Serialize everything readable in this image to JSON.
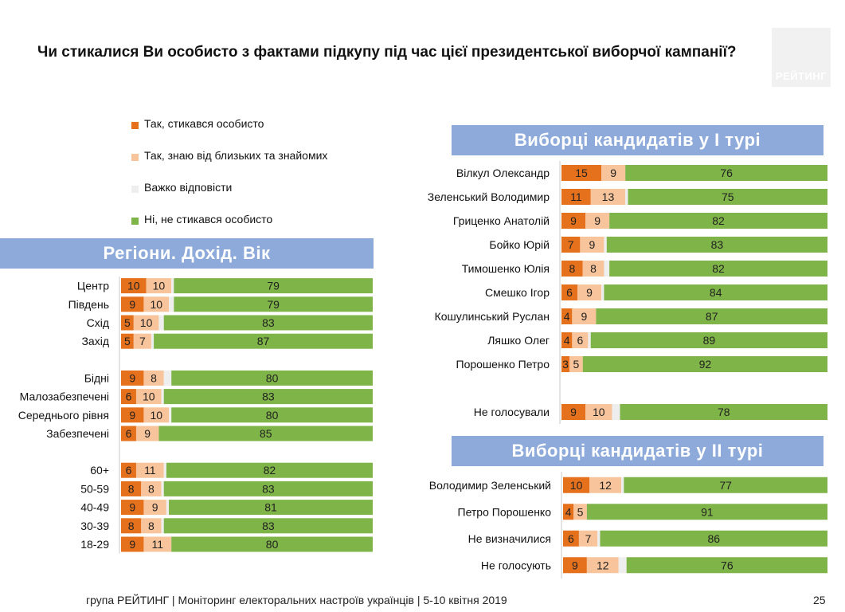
{
  "title": "Чи стикалися Ви особисто з фактами підкупу під час цієї президентської виборчої кампанії?",
  "logo_text": "РЕЙТИНГ",
  "legend": [
    {
      "label": "Так, стикався особисто",
      "color": "#e5711d"
    },
    {
      "label": "Так, знаю від близьких та знайомих",
      "color": "#f8c49b"
    },
    {
      "label": "Важко відповісти",
      "color": "#eeeeee"
    },
    {
      "label": "Ні, не стикався особисто",
      "color": "#7fb448"
    }
  ],
  "colors": {
    "banner": "#8eaadb",
    "dark_label": "#222222",
    "light_label": "#ffffff"
  },
  "footer": "група РЕЙТИНГ | Моніторинг електоральних настроїв українців  |  5-10 квітня 2019",
  "page_number": "25",
  "chart_data": [
    {
      "type": "bar",
      "stacked": true,
      "orientation": "horizontal",
      "title": "Регіони. Дохід. Вік",
      "series_names": [
        "Так, стикався особисто",
        "Так, знаю від близьких та знайомих",
        "Важко відповісти",
        "Ні, не стикався особисто"
      ],
      "groups": [
        {
          "rows": [
            {
              "label": "Центр",
              "values": [
                10,
                10,
                1,
                79
              ]
            },
            {
              "label": "Південь",
              "values": [
                9,
                10,
                2,
                79
              ]
            },
            {
              "label": "Схід",
              "values": [
                5,
                10,
                2,
                83
              ]
            },
            {
              "label": "Захід",
              "values": [
                5,
                7,
                1,
                87
              ]
            }
          ]
        },
        {
          "rows": [
            {
              "label": "Бідні",
              "values": [
                9,
                8,
                3,
                80
              ]
            },
            {
              "label": "Малозабезпечені",
              "values": [
                6,
                10,
                1,
                83
              ]
            },
            {
              "label": "Середнього рівня",
              "values": [
                9,
                10,
                1,
                80
              ]
            },
            {
              "label": "Забезпечені",
              "values": [
                6,
                9,
                0,
                85
              ]
            }
          ]
        },
        {
          "rows": [
            {
              "label": "60+",
              "values": [
                6,
                11,
                1,
                82
              ]
            },
            {
              "label": "50-59",
              "values": [
                8,
                8,
                1,
                83
              ]
            },
            {
              "label": "40-49",
              "values": [
                9,
                9,
                1,
                81
              ]
            },
            {
              "label": "30-39",
              "values": [
                8,
                8,
                1,
                83
              ]
            },
            {
              "label": "18-29",
              "values": [
                9,
                11,
                0,
                80
              ]
            }
          ]
        }
      ]
    },
    {
      "type": "bar",
      "stacked": true,
      "orientation": "horizontal",
      "title": "Виборці кандидатів у І турі",
      "series_names": [
        "Так, стикався особисто",
        "Так, знаю від близьких та знайомих",
        "Важко відповісти",
        "Ні, не стикався особисто"
      ],
      "groups": [
        {
          "rows": [
            {
              "label": "Вілкул Олександр",
              "values": [
                15,
                9,
                0,
                76
              ]
            },
            {
              "label": "Зеленський Володимир",
              "values": [
                11,
                13,
                1,
                75
              ]
            },
            {
              "label": "Гриценко Анатолій",
              "values": [
                9,
                9,
                0,
                82
              ]
            },
            {
              "label": "Бойко Юрій",
              "values": [
                7,
                9,
                1,
                83
              ]
            },
            {
              "label": "Тимошенко Юлія",
              "values": [
                8,
                8,
                2,
                82
              ]
            },
            {
              "label": "Смешко Ігор",
              "values": [
                6,
                9,
                1,
                84
              ]
            },
            {
              "label": "Кошулинський Руслан",
              "values": [
                4,
                9,
                0,
                87
              ]
            },
            {
              "label": "Ляшко Олег",
              "values": [
                4,
                6,
                1,
                89
              ]
            },
            {
              "label": "Порошенко Петро",
              "values": [
                3,
                5,
                0,
                92
              ]
            }
          ]
        },
        {
          "rows": [
            {
              "label": "Не голосували",
              "values": [
                9,
                10,
                3,
                78
              ]
            }
          ]
        }
      ]
    },
    {
      "type": "bar",
      "stacked": true,
      "orientation": "horizontal",
      "title": "Виборці кандидатів у ІІ турі",
      "series_names": [
        "Так, стикався особисто",
        "Так, знаю від близьких та знайомих",
        "Важко відповісти",
        "Ні, не стикався особисто"
      ],
      "groups": [
        {
          "rows": [
            {
              "label": "Володимир Зеленський",
              "values": [
                10,
                12,
                1,
                77
              ]
            },
            {
              "label": "Петро Порошенко",
              "values": [
                4,
                5,
                0,
                91
              ]
            },
            {
              "label": "Не визначилися",
              "values": [
                6,
                7,
                1,
                86
              ]
            },
            {
              "label": "Не голосують",
              "values": [
                9,
                12,
                3,
                76
              ]
            }
          ]
        }
      ]
    }
  ]
}
